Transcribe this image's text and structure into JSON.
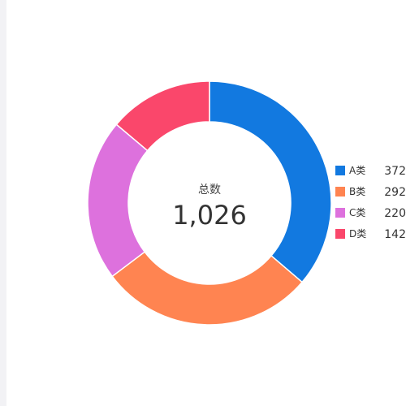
{
  "chart_data": {
    "type": "pie",
    "style": "donut",
    "center": {
      "label": "总数",
      "value": "1,026"
    },
    "categories": [
      "A类",
      "B类",
      "C类",
      "D类"
    ],
    "values": [
      372,
      292,
      220,
      142
    ],
    "colors": [
      "#1279e0",
      "#ff8451",
      "#dd71dd",
      "#fa476b"
    ],
    "legend_position": "right"
  }
}
